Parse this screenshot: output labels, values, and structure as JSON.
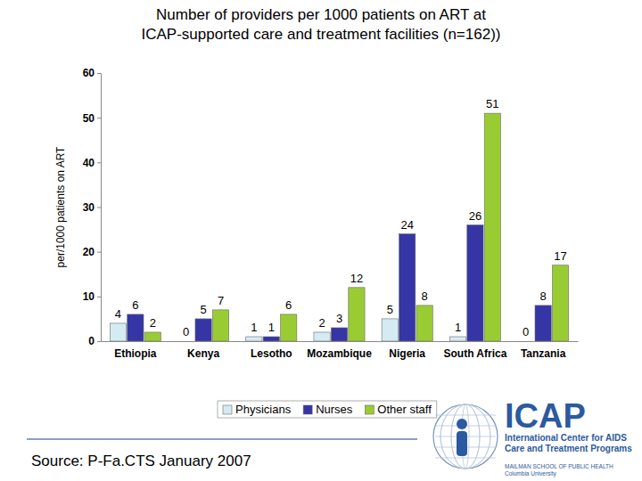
{
  "chart_data": {
    "type": "bar",
    "title": "Number of providers per 1000 patients on ART at ICAP-supported care and treatment facilities (n=162))",
    "y_label": "per/1000 patients on ART",
    "annotations": [
      "Source: P-Fa.CTS January 2007",
      "ICAP",
      "International Center for AIDS Care and Treatment Programs",
      "MAILMAN SCHOOL OF PUBLIC HEALTH Columbia University"
    ],
    "categories": [
      "Ethiopia",
      "Kenya",
      "Lesotho",
      "Mozambique",
      "Nigeria",
      "South Africa",
      "Tanzania"
    ],
    "series": [
      {
        "name": "Physicians",
        "color": "#d5ebf3",
        "values": [
          4,
          0,
          1,
          2,
          5,
          1,
          0
        ]
      },
      {
        "name": "Nurses",
        "color": "#3535a6",
        "values": [
          6,
          5,
          1,
          3,
          24,
          26,
          8
        ]
      },
      {
        "name": "Other staff",
        "color": "#99cc33",
        "values": [
          2,
          7,
          6,
          12,
          8,
          51,
          17
        ]
      }
    ],
    "ylim": [
      0,
      60
    ],
    "yticks": [
      0,
      10,
      20,
      30,
      40,
      50,
      60
    ],
    "grid": false,
    "legend": "bottom",
    "data_labels": true
  }
}
